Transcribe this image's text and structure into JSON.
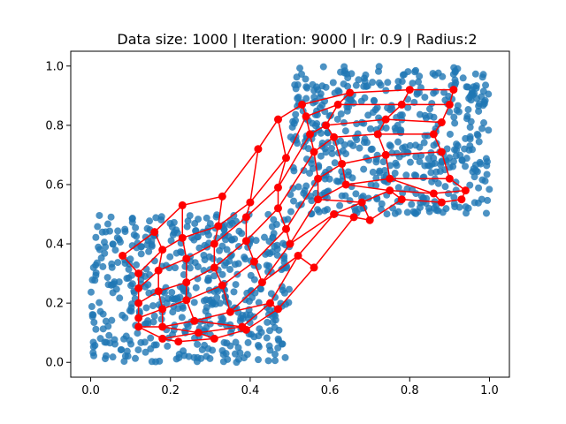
{
  "chart_data": {
    "type": "scatter",
    "title": "Data size: 1000 | Iteration: 9000 | lr: 0.9 | Radius:2",
    "xlabel": "",
    "ylabel": "",
    "xlim": [
      -0.05,
      1.05
    ],
    "ylim": [
      -0.05,
      1.05
    ],
    "grid": false,
    "xticks": [
      "0.0",
      "0.2",
      "0.4",
      "0.6",
      "0.8",
      "1.0"
    ],
    "yticks": [
      "0.0",
      "0.2",
      "0.4",
      "0.6",
      "0.8",
      "1.0"
    ],
    "colors": {
      "data": "#1f77b4",
      "som": "#ff0000"
    },
    "data_regions": [
      {
        "x": [
          0.0,
          0.5
        ],
        "y": [
          0.0,
          0.5
        ]
      },
      {
        "x": [
          0.5,
          1.0
        ],
        "y": [
          0.5,
          1.0
        ]
      }
    ],
    "data_size": 1000,
    "som_grid": [
      [
        [
          0.08,
          0.36
        ],
        [
          0.16,
          0.44
        ],
        [
          0.23,
          0.53
        ],
        [
          0.33,
          0.56
        ],
        [
          0.42,
          0.72
        ],
        [
          0.47,
          0.82
        ],
        [
          0.53,
          0.87
        ],
        [
          0.65,
          0.91
        ],
        [
          0.8,
          0.92
        ],
        [
          0.91,
          0.92
        ]
      ],
      [
        [
          0.12,
          0.3
        ],
        [
          0.18,
          0.38
        ],
        [
          0.23,
          0.42
        ],
        [
          0.32,
          0.46
        ],
        [
          0.4,
          0.54
        ],
        [
          0.49,
          0.69
        ],
        [
          0.54,
          0.83
        ],
        [
          0.62,
          0.87
        ],
        [
          0.78,
          0.87
        ],
        [
          0.9,
          0.87
        ]
      ],
      [
        [
          0.12,
          0.25
        ],
        [
          0.17,
          0.31
        ],
        [
          0.24,
          0.35
        ],
        [
          0.31,
          0.4
        ],
        [
          0.39,
          0.49
        ],
        [
          0.47,
          0.59
        ],
        [
          0.55,
          0.77
        ],
        [
          0.59,
          0.8
        ],
        [
          0.74,
          0.82
        ],
        [
          0.88,
          0.81
        ]
      ],
      [
        [
          0.12,
          0.2
        ],
        [
          0.17,
          0.24
        ],
        [
          0.24,
          0.27
        ],
        [
          0.31,
          0.32
        ],
        [
          0.39,
          0.41
        ],
        [
          0.47,
          0.52
        ],
        [
          0.56,
          0.71
        ],
        [
          0.61,
          0.76
        ],
        [
          0.72,
          0.77
        ],
        [
          0.86,
          0.77
        ]
      ],
      [
        [
          0.12,
          0.15
        ],
        [
          0.18,
          0.18
        ],
        [
          0.24,
          0.21
        ],
        [
          0.33,
          0.26
        ],
        [
          0.41,
          0.34
        ],
        [
          0.49,
          0.45
        ],
        [
          0.57,
          0.62
        ],
        [
          0.63,
          0.67
        ],
        [
          0.74,
          0.7
        ],
        [
          0.88,
          0.71
        ]
      ],
      [
        [
          0.12,
          0.12
        ],
        [
          0.18,
          0.12
        ],
        [
          0.26,
          0.14
        ],
        [
          0.35,
          0.17
        ],
        [
          0.43,
          0.27
        ],
        [
          0.5,
          0.4
        ],
        [
          0.57,
          0.55
        ],
        [
          0.64,
          0.6
        ],
        [
          0.75,
          0.62
        ],
        [
          0.9,
          0.62
        ]
      ],
      [
        [
          0.18,
          0.08
        ],
        [
          0.27,
          0.1
        ],
        [
          0.38,
          0.12
        ],
        [
          0.45,
          0.2
        ],
        [
          0.52,
          0.36
        ],
        [
          0.61,
          0.5
        ],
        [
          0.68,
          0.54
        ],
        [
          0.75,
          0.58
        ],
        [
          0.86,
          0.57
        ],
        [
          0.94,
          0.58
        ]
      ],
      [
        [
          0.22,
          0.07
        ],
        [
          0.31,
          0.08
        ],
        [
          0.39,
          0.11
        ],
        [
          0.47,
          0.18
        ],
        [
          0.56,
          0.32
        ],
        [
          0.66,
          0.49
        ],
        [
          0.7,
          0.48
        ],
        [
          0.78,
          0.55
        ],
        [
          0.88,
          0.54
        ],
        [
          0.93,
          0.55
        ]
      ]
    ]
  }
}
